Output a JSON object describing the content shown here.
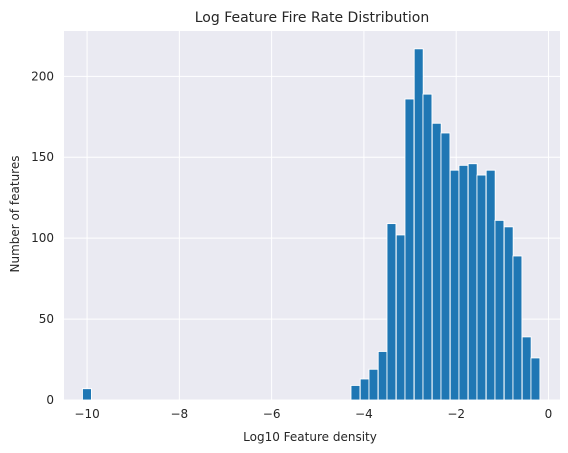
{
  "chart_data": {
    "type": "bar",
    "title": "Log Feature Fire Rate Distribution",
    "xlabel": "Log10 Feature density",
    "ylabel": "Number of features",
    "xlim": [
      -10.5,
      0.25
    ],
    "ylim": [
      0,
      228
    ],
    "x_ticks": [
      -10,
      -8,
      -6,
      -4,
      -2,
      0
    ],
    "y_ticks": [
      0,
      50,
      100,
      150,
      200
    ],
    "x_tick_labels": [
      "−10",
      "−8",
      "−6",
      "−4",
      "−2",
      "0"
    ],
    "y_tick_labels": [
      "0",
      "50",
      "100",
      "150",
      "200"
    ],
    "grid": true,
    "colors": {
      "bar": "#1f77b4",
      "background": "#eaeaf2",
      "grid": "#ffffff"
    },
    "bin_width": 0.195,
    "bins_left": [
      -10.1,
      -4.28,
      -4.08,
      -3.89,
      -3.69,
      -3.5,
      -3.3,
      -3.11,
      -2.91,
      -2.72,
      -2.52,
      -2.33,
      -2.13,
      -1.94,
      -1.74,
      -1.55,
      -1.35,
      -1.16,
      -0.96,
      -0.77,
      -0.57,
      -0.38
    ],
    "values": [
      7,
      9,
      13,
      19,
      30,
      109,
      102,
      186,
      217,
      189,
      171,
      165,
      142,
      145,
      146,
      139,
      142,
      111,
      107,
      89,
      39,
      26
    ]
  }
}
